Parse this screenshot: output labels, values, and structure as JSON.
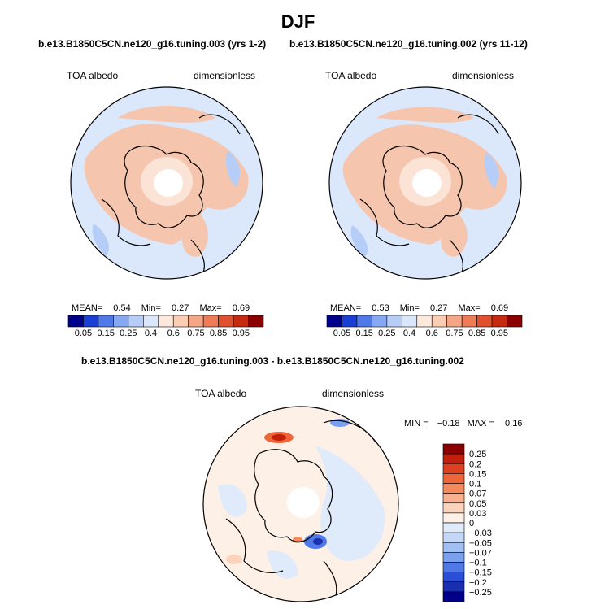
{
  "title": "DJF",
  "panels": [
    {
      "subtitle": "b.e13.B1850C5CN.ne120_g16.tuning.003 (yrs 1-2)",
      "variable": "TOA albedo",
      "units": "dimensionless",
      "stats": {
        "mean_label": "MEAN=",
        "mean": "0.54",
        "min_label": "Min=",
        "min": "0.27",
        "max_label": "Max=",
        "max": "0.69"
      }
    },
    {
      "subtitle": "b.e13.B1850C5CN.ne120_g16.tuning.002 (yrs 11-12)",
      "variable": "TOA albedo",
      "units": "dimensionless",
      "stats": {
        "mean_label": "MEAN=",
        "mean": "0.53",
        "min_label": "Min=",
        "min": "0.27",
        "max_label": "Max=",
        "max": "0.69"
      }
    }
  ],
  "colorbar_main": {
    "labels": [
      "0.05",
      "0.15",
      "0.25",
      "0.4",
      "0.6",
      "0.75",
      "0.85",
      "0.95"
    ],
    "colors": [
      "#00008b",
      "#1a3fd6",
      "#4f7ae8",
      "#86a9f2",
      "#b5cdf7",
      "#d9e6fb",
      "#fde9dc",
      "#fbcdb2",
      "#f5a684",
      "#ee7c57",
      "#e0502e",
      "#c62a13",
      "#8b0000"
    ]
  },
  "difference": {
    "subtitle": "b.e13.B1850C5CN.ne120_g16.tuning.003 - b.e13.B1850C5CN.ne120_g16.tuning.002",
    "variable": "TOA albedo",
    "units": "dimensionless",
    "stats": {
      "min_label": "MIN =",
      "min": "−0.18",
      "max_label": "MAX =",
      "max": "0.16"
    },
    "colorbar": {
      "labels": [
        "0.25",
        "0.2",
        "0.15",
        "0.1",
        "0.07",
        "0.05",
        "0.03",
        "0",
        "−0.03",
        "−0.05",
        "−0.07",
        "−0.1",
        "−0.15",
        "−0.2",
        "−0.25"
      ],
      "colors": [
        "#8b0000",
        "#c21f0c",
        "#e0401f",
        "#f0643a",
        "#f58a5e",
        "#f9b08e",
        "#fbd2bb",
        "#fdf0e6",
        "#dfeafb",
        "#c4d7f7",
        "#a1bff3",
        "#7aa0ee",
        "#5078e6",
        "#2a4fd6",
        "#1a2fb0",
        "#00008b"
      ]
    }
  }
}
